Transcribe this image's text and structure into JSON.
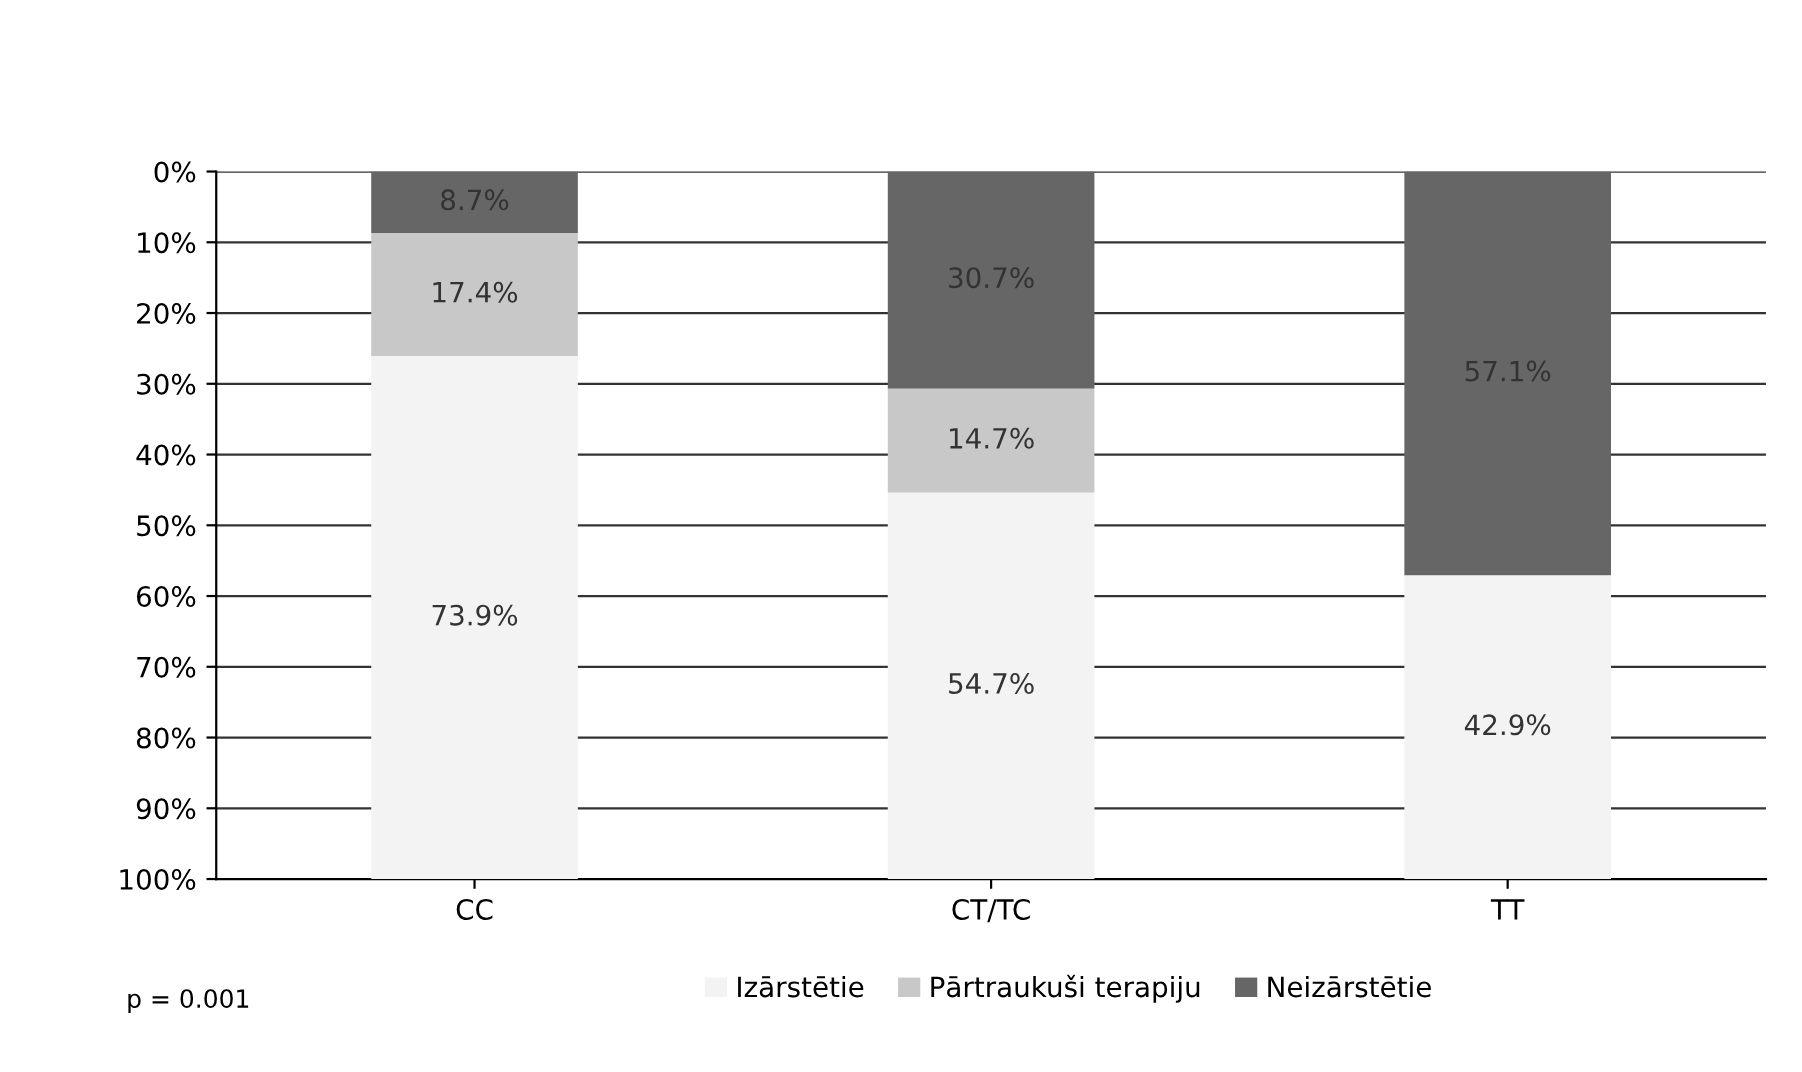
{
  "chart_data": {
    "type": "bar",
    "stacked": true,
    "categories": [
      "CC",
      "CT/TC",
      "TT"
    ],
    "series": [
      {
        "name": "Neizārstētie",
        "color": "#666666",
        "values": [
          8.7,
          30.7,
          57.1
        ],
        "value_labels": [
          "8.7%",
          "30.7%",
          "57.1%"
        ]
      },
      {
        "name": "Pārtraukuši terapiju",
        "color": "#c8c8c8",
        "values": [
          17.4,
          14.7,
          0
        ],
        "value_labels": [
          "17.4%",
          "14.7%",
          null
        ]
      },
      {
        "name": "Izārstētie",
        "color": "#f3f3f3",
        "values": [
          73.9,
          54.7,
          42.9
        ],
        "value_labels": [
          "73.9%",
          "54.7%",
          "42.9%"
        ]
      }
    ],
    "ylim": [
      100,
      0
    ],
    "yticks": [
      {
        "value": 0,
        "label": "0%"
      },
      {
        "value": 10,
        "label": "10%"
      },
      {
        "value": 20,
        "label": "20%"
      },
      {
        "value": 30,
        "label": "30%"
      },
      {
        "value": 40,
        "label": "40%"
      },
      {
        "value": 50,
        "label": "50%"
      },
      {
        "value": 60,
        "label": "60%"
      },
      {
        "value": 70,
        "label": "70%"
      },
      {
        "value": 80,
        "label": "80%"
      },
      {
        "value": 90,
        "label": "90%"
      },
      {
        "value": 100,
        "label": "100%"
      }
    ],
    "grid": "y",
    "legend": "bottom",
    "annotations": [
      "p = 0.001"
    ]
  }
}
